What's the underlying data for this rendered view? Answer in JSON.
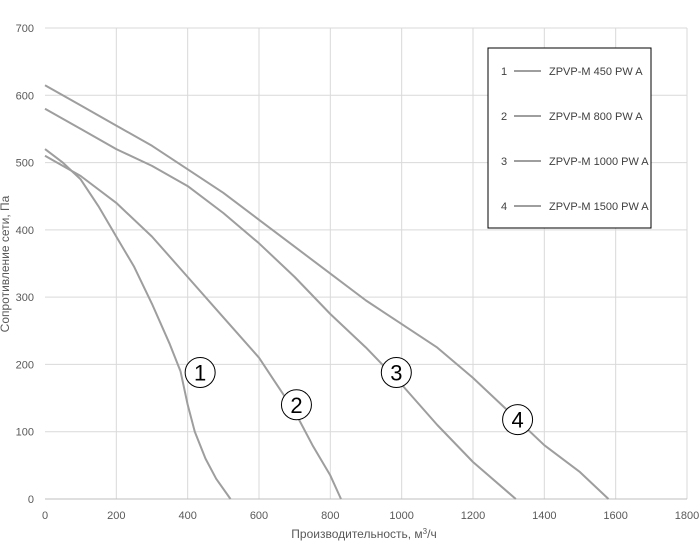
{
  "chart_data": {
    "type": "line",
    "xlabel_main": "Производительность, м",
    "xlabel_sup": "3",
    "xlabel_tail": "/ч",
    "ylabel": "Сопротивление сети, Па",
    "xlim": [
      0,
      1800
    ],
    "ylim": [
      0,
      700
    ],
    "x_ticks": [
      "0",
      "200",
      "400",
      "600",
      "800",
      "1000",
      "1200",
      "1400",
      "1600",
      "1800"
    ],
    "y_ticks": [
      "0",
      "100",
      "200",
      "300",
      "400",
      "500",
      "600",
      "700"
    ],
    "grid": true,
    "legend_position": "top-right",
    "line_color": "#9e9e9e",
    "series": [
      {
        "name": "ZPVP-M 450 PW A",
        "marker_label": "1",
        "marker_at": [
          435,
          188
        ],
        "points": [
          [
            0,
            520
          ],
          [
            50,
            500
          ],
          [
            100,
            475
          ],
          [
            150,
            435
          ],
          [
            200,
            390
          ],
          [
            250,
            345
          ],
          [
            300,
            290
          ],
          [
            350,
            230
          ],
          [
            380,
            190
          ],
          [
            400,
            140
          ],
          [
            420,
            100
          ],
          [
            450,
            60
          ],
          [
            480,
            30
          ],
          [
            520,
            0
          ]
        ]
      },
      {
        "name": "ZPVP-M 800 PW A",
        "marker_label": "2",
        "marker_at": [
          705,
          140
        ],
        "points": [
          [
            0,
            510
          ],
          [
            100,
            480
          ],
          [
            200,
            440
          ],
          [
            300,
            390
          ],
          [
            400,
            330
          ],
          [
            500,
            270
          ],
          [
            600,
            210
          ],
          [
            650,
            170
          ],
          [
            700,
            130
          ],
          [
            750,
            80
          ],
          [
            800,
            35
          ],
          [
            830,
            0
          ]
        ]
      },
      {
        "name": "ZPVP-M 1000 PW A",
        "marker_label": "3",
        "marker_at": [
          985,
          188
        ],
        "points": [
          [
            0,
            580
          ],
          [
            100,
            550
          ],
          [
            200,
            520
          ],
          [
            300,
            495
          ],
          [
            400,
            465
          ],
          [
            500,
            425
          ],
          [
            600,
            380
          ],
          [
            700,
            330
          ],
          [
            800,
            275
          ],
          [
            900,
            225
          ],
          [
            1000,
            170
          ],
          [
            1100,
            110
          ],
          [
            1200,
            55
          ],
          [
            1320,
            0
          ]
        ]
      },
      {
        "name": "ZPVP-M 1500 PW A",
        "marker_label": "4",
        "marker_at": [
          1325,
          118
        ],
        "points": [
          [
            0,
            615
          ],
          [
            100,
            585
          ],
          [
            200,
            555
          ],
          [
            300,
            525
          ],
          [
            400,
            490
          ],
          [
            500,
            455
          ],
          [
            600,
            415
          ],
          [
            700,
            375
          ],
          [
            800,
            335
          ],
          [
            900,
            295
          ],
          [
            1000,
            260
          ],
          [
            1100,
            225
          ],
          [
            1200,
            180
          ],
          [
            1300,
            130
          ],
          [
            1400,
            80
          ],
          [
            1500,
            40
          ],
          [
            1580,
            0
          ]
        ]
      }
    ]
  }
}
